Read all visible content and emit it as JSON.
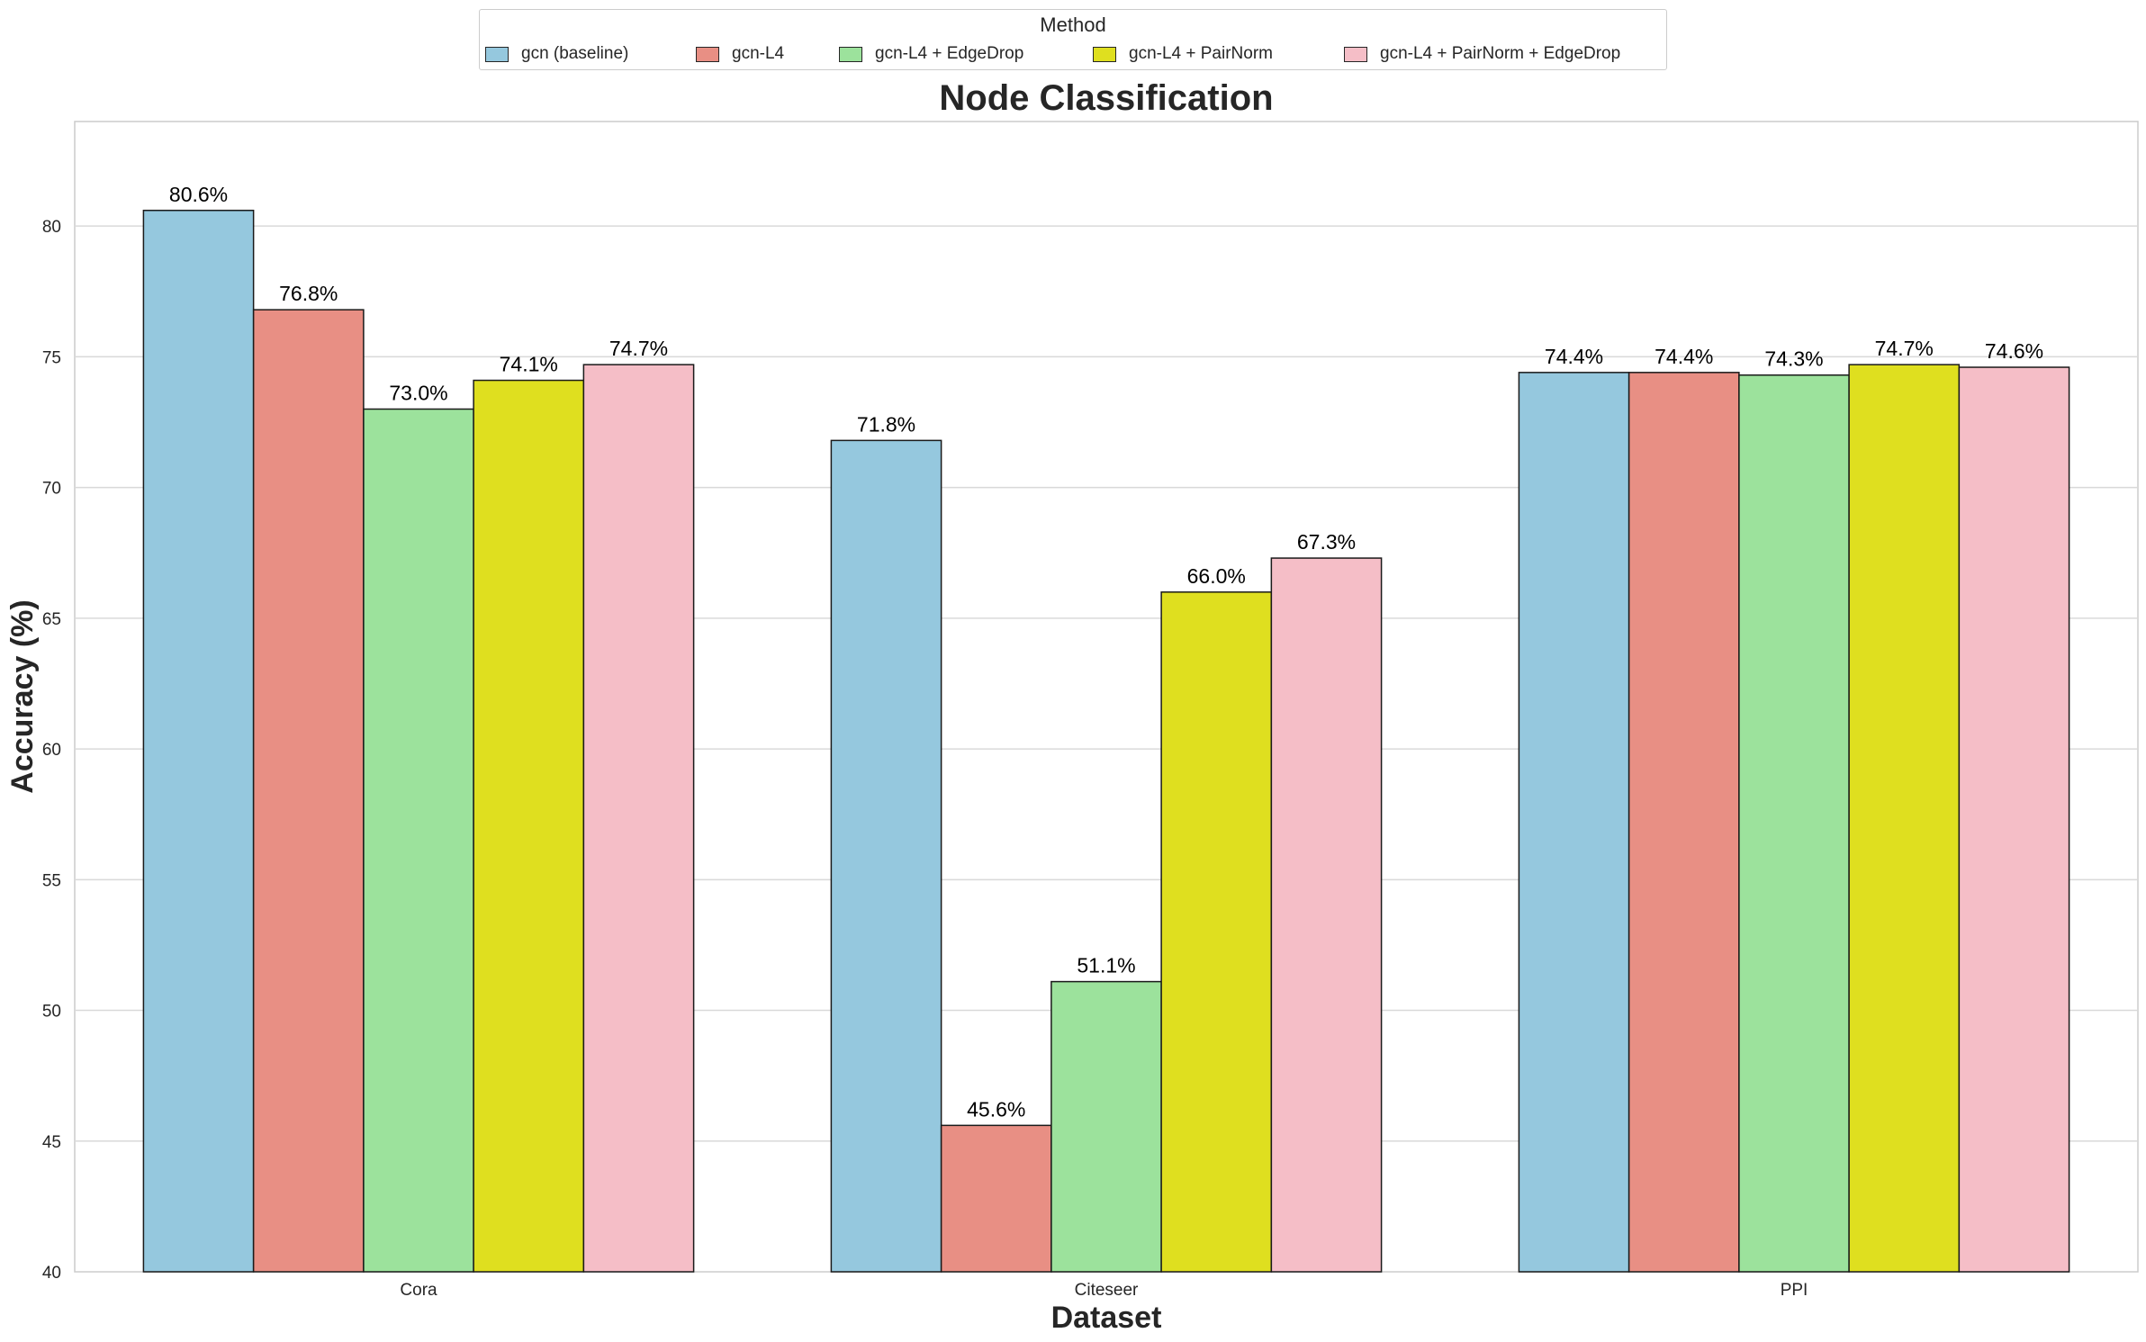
{
  "chart_data": {
    "type": "bar",
    "title": "Node Classification",
    "xlabel": "Dataset",
    "ylabel": "Accuracy (%)",
    "ylim": [
      40,
      84
    ],
    "yticks": [
      40,
      45,
      50,
      55,
      60,
      65,
      70,
      75,
      80
    ],
    "grid": "horizontal",
    "legend_title": "Method",
    "legend_position": "top-center",
    "categories": [
      "Cora",
      "Citeseer",
      "PPI"
    ],
    "series": [
      {
        "name": "gcn (baseline)",
        "color": "#95c8de",
        "values": [
          80.6,
          71.8,
          74.4
        ],
        "labels": [
          "80.6%",
          "71.8%",
          "74.4%"
        ]
      },
      {
        "name": "gcn-L4",
        "color": "#e88f84",
        "values": [
          76.8,
          45.6,
          74.4
        ],
        "labels": [
          "76.8%",
          "45.6%",
          "74.4%"
        ]
      },
      {
        "name": "gcn-L4 + EdgeDrop",
        "color": "#9ce29c",
        "values": [
          73.0,
          51.1,
          74.3
        ],
        "labels": [
          "73.0%",
          "51.1%",
          "74.3%"
        ]
      },
      {
        "name": "gcn-L4 + PairNorm",
        "color": "#dfdf1f",
        "values": [
          74.1,
          66.0,
          74.7
        ],
        "labels": [
          "74.1%",
          "66.0%",
          "74.7%"
        ]
      },
      {
        "name": "gcn-L4 + PairNorm + EdgeDrop",
        "color": "#f5bec7",
        "values": [
          74.7,
          67.3,
          74.6
        ],
        "labels": [
          "74.7%",
          "67.3%",
          "74.6%"
        ]
      }
    ]
  }
}
